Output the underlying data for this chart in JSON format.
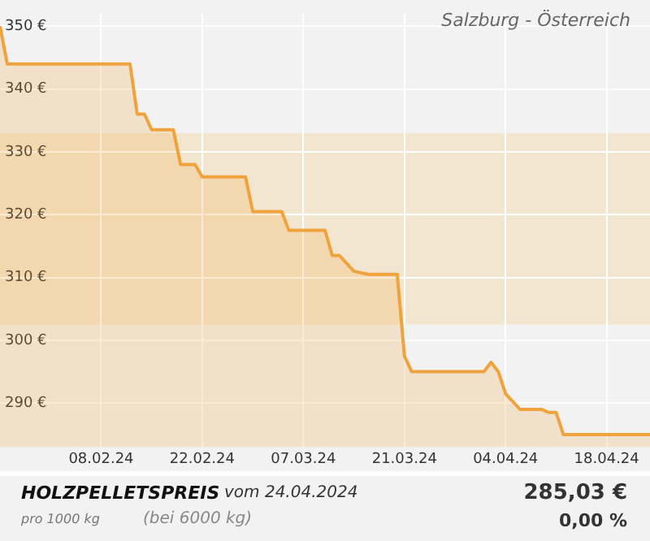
{
  "chart_data": {
    "type": "area",
    "title": "HOLZPELLETSPREIS",
    "subtitle": "Salzburg - Österreich",
    "annotations": [
      "vom 24.04.2024",
      "pro 1000 kg",
      "(bei 6000 kg)",
      "285,03 €",
      "0,00 %"
    ],
    "x": [
      "2024-01-25",
      "2024-01-26",
      "2024-02-12",
      "2024-02-13",
      "2024-02-14",
      "2024-02-15",
      "2024-02-18",
      "2024-02-19",
      "2024-02-21",
      "2024-02-22",
      "2024-02-28",
      "2024-02-29",
      "2024-03-04",
      "2024-03-05",
      "2024-03-10",
      "2024-03-11",
      "2024-03-12",
      "2024-03-14",
      "2024-03-16",
      "2024-03-20",
      "2024-03-21",
      "2024-03-22",
      "2024-04-01",
      "2024-04-02",
      "2024-04-03",
      "2024-04-04",
      "2024-04-06",
      "2024-04-09",
      "2024-04-10",
      "2024-04-11",
      "2024-04-12",
      "2024-04-24"
    ],
    "series": [
      {
        "color": "#f0a33c",
        "values": [
          350,
          344,
          344,
          336,
          336,
          333.5,
          333.5,
          328,
          328,
          326,
          326,
          320.5,
          320.5,
          317.5,
          317.5,
          313.5,
          313.5,
          311,
          310.5,
          310.5,
          297.5,
          295,
          295,
          296.5,
          295,
          291.5,
          289,
          289,
          288.5,
          288.5,
          285,
          285
        ]
      }
    ],
    "xlim": [
      "2024-01-25",
      "2024-04-24"
    ],
    "xticks": [
      {
        "value": "2024-02-08",
        "label": "08.02.24"
      },
      {
        "value": "2024-02-22",
        "label": "22.02.24"
      },
      {
        "value": "2024-03-07",
        "label": "07.03.24"
      },
      {
        "value": "2024-03-21",
        "label": "21.03.24"
      },
      {
        "value": "2024-04-04",
        "label": "04.04.24"
      },
      {
        "value": "2024-04-18",
        "label": "18.04.24"
      }
    ],
    "ylim": [
      283,
      352
    ],
    "yticks": [
      {
        "value": 290,
        "label": "290 €"
      },
      {
        "value": 300,
        "label": "300 €"
      },
      {
        "value": 310,
        "label": "310 €"
      },
      {
        "value": 320,
        "label": "320 €"
      },
      {
        "value": 330,
        "label": "330 €"
      },
      {
        "value": 340,
        "label": "340 €"
      },
      {
        "value": 350,
        "label": "350 €"
      }
    ],
    "bands": [
      {
        "axis": "y",
        "from": 302.5,
        "to": 333,
        "color": "#f3e6d0"
      }
    ],
    "grid": true,
    "marker": "none"
  }
}
